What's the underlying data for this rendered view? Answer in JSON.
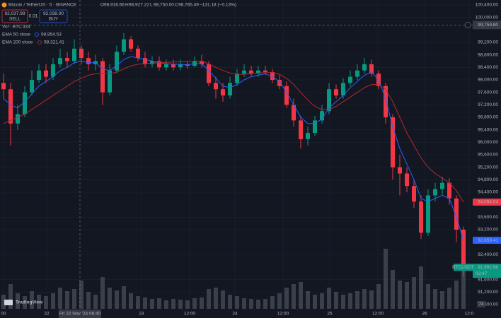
{
  "toolbar": {
    "title": "Bitcoin / TetherUS · 5 · BINANCE",
    "ohlc": [
      {
        "label": "O",
        "value": "98,916.66"
      },
      {
        "label": "H",
        "value": "98,927.22"
      },
      {
        "label": "L",
        "value": "98,750.00"
      },
      {
        "label": "C",
        "value": "98,785.49"
      }
    ],
    "change": "−131.18 (−0.13%)",
    "sell": {
      "price": "92,037.99",
      "label": "SELL"
    },
    "quantity": "0.01",
    "buy": {
      "price": "92,038.00",
      "label": "BUY"
    }
  },
  "logo": "TradingView",
  "corner_badge": "74",
  "chart_data": {
    "type": "candlestick",
    "up_color": "#089981",
    "down_color": "#f23645",
    "grid": true,
    "open": [
      97900,
      97700,
      96600,
      96900,
      97600,
      98000,
      98300,
      98100,
      98500,
      98700,
      98600,
      99000,
      98700,
      98500,
      98600,
      97600,
      98300,
      98900,
      99300,
      99000,
      98700,
      98500,
      98600,
      98400,
      98500,
      98400,
      98500,
      98450,
      98600,
      98500,
      97900,
      97700,
      97500,
      97900,
      98200,
      98300,
      98200,
      98300,
      98250,
      98000,
      97800,
      97200,
      96700,
      96100,
      96300,
      96700,
      97000,
      97700,
      97500,
      97900,
      98100,
      98300,
      98500,
      98200,
      97800,
      96800,
      95200,
      95000,
      94600,
      94100,
      93100,
      94300,
      94500,
      94700,
      94200,
      93200
    ],
    "high": [
      98200,
      97900,
      97200,
      97800,
      98300,
      98500,
      98500,
      98700,
      99000,
      98900,
      99300,
      99100,
      98900,
      98800,
      98700,
      98500,
      99100,
      99500,
      99400,
      99100,
      98900,
      98750,
      98750,
      98650,
      98650,
      98650,
      98600,
      98750,
      98800,
      98600,
      98100,
      97900,
      98100,
      98350,
      98500,
      98450,
      98450,
      98450,
      98350,
      98150,
      97950,
      97400,
      96850,
      96500,
      96850,
      97200,
      97900,
      97850,
      98050,
      98300,
      98500,
      98700,
      98650,
      98300,
      97900,
      96900,
      95600,
      95200,
      94800,
      94300,
      94500,
      94700,
      94900,
      94850,
      94300,
      93300
    ],
    "low": [
      97400,
      95900,
      96400,
      96800,
      97500,
      97900,
      97900,
      98000,
      98400,
      98400,
      98500,
      98500,
      98300,
      98300,
      97200,
      97500,
      98200,
      98800,
      98900,
      98600,
      98400,
      98400,
      98300,
      98300,
      98300,
      98300,
      98350,
      98400,
      98400,
      97800,
      97400,
      97300,
      97400,
      97800,
      98100,
      98100,
      98100,
      98150,
      97900,
      97700,
      97100,
      96500,
      95800,
      95900,
      96200,
      96600,
      96900,
      97400,
      97400,
      97800,
      98000,
      98200,
      98100,
      97700,
      96600,
      94800,
      94300,
      94400,
      93900,
      92900,
      93000,
      94100,
      94300,
      94000,
      92800,
      91700
    ],
    "close": [
      97700,
      96600,
      96900,
      97600,
      98000,
      98300,
      98100,
      98500,
      98700,
      98600,
      99000,
      98700,
      98500,
      98600,
      97600,
      98300,
      98900,
      99300,
      99000,
      98700,
      98500,
      98600,
      98400,
      98500,
      98400,
      98500,
      98450,
      98600,
      98500,
      97900,
      97700,
      97500,
      97900,
      98200,
      98300,
      98200,
      98300,
      98250,
      98000,
      97800,
      97200,
      96700,
      96100,
      96300,
      96700,
      97000,
      97700,
      97500,
      97900,
      98100,
      98300,
      98500,
      98200,
      97800,
      96800,
      95200,
      95000,
      94600,
      94100,
      93100,
      94300,
      94500,
      94700,
      94200,
      93200,
      91993
    ],
    "ema": [
      {
        "name": "EMA 50 close",
        "value_label": "98,954.53",
        "color": "#2962ff",
        "values": [
          97400,
          97200,
          97100,
          97300,
          97550,
          97800,
          97950,
          98100,
          98300,
          98400,
          98550,
          98600,
          98550,
          98550,
          98350,
          98300,
          98450,
          98650,
          98750,
          98700,
          98650,
          98600,
          98550,
          98520,
          98500,
          98500,
          98480,
          98520,
          98520,
          98300,
          98050,
          97800,
          97750,
          97850,
          98000,
          98100,
          98150,
          98200,
          98100,
          97950,
          97600,
          97200,
          96800,
          96600,
          96600,
          96750,
          97100,
          97300,
          97500,
          97750,
          97950,
          98150,
          98250,
          98000,
          97400,
          96500,
          95800,
          95300,
          94800,
          94200,
          94100,
          94200,
          94300,
          94200,
          93600,
          92859.41
        ]
      },
      {
        "name": "EMA 200 close",
        "value_label": "98,321.41",
        "color": "#b22833",
        "values": [
          96600,
          96700,
          96800,
          96900,
          97050,
          97200,
          97350,
          97500,
          97650,
          97800,
          97950,
          98050,
          98150,
          98200,
          98200,
          98200,
          98250,
          98350,
          98450,
          98500,
          98520,
          98540,
          98550,
          98560,
          98570,
          98580,
          98590,
          98600,
          98600,
          98520,
          98400,
          98300,
          98220,
          98180,
          98180,
          98200,
          98220,
          98230,
          98230,
          98180,
          98050,
          97850,
          97600,
          97350,
          97150,
          97050,
          97050,
          97150,
          97300,
          97450,
          97600,
          97750,
          97850,
          97850,
          97700,
          97300,
          96800,
          96300,
          95900,
          95500,
          95200,
          95000,
          94850,
          94700,
          94450,
          94084.04
        ]
      }
    ],
    "volume": {
      "name": "Vol · BTC",
      "value_label": "324",
      "color": "#5d606b",
      "ylim": [
        0,
        100
      ],
      "values": [
        20,
        35,
        22,
        18,
        25,
        20,
        18,
        22,
        30,
        25,
        28,
        40,
        24,
        20,
        45,
        30,
        26,
        32,
        22,
        18,
        16,
        14,
        15,
        12,
        14,
        13,
        12,
        15,
        16,
        28,
        30,
        26,
        20,
        18,
        15,
        14,
        13,
        14,
        18,
        22,
        30,
        35,
        38,
        25,
        20,
        22,
        30,
        24,
        20,
        22,
        25,
        28,
        26,
        35,
        85,
        55,
        40,
        38,
        45,
        60,
        35,
        28,
        25,
        30,
        40,
        70
      ]
    },
    "xlim": [
      0,
      66.8
    ],
    "xticks": [
      {
        "value": 0.5,
        "label": "00"
      },
      {
        "value": 6.6,
        "label": "22"
      },
      {
        "value": 20,
        "label": "23"
      },
      {
        "value": 26.8,
        "label": "12:00"
      },
      {
        "value": 33.2,
        "label": "24"
      },
      {
        "value": 40,
        "label": "12:00"
      },
      {
        "value": 46.6,
        "label": "25"
      },
      {
        "value": 53.4,
        "label": "12:00"
      },
      {
        "value": 60,
        "label": "26"
      },
      {
        "value": 66.3,
        "label": "12:0"
      }
    ],
    "ylim": [
      90800,
      100400
    ],
    "yticks": [
      {
        "value": 100400,
        "label": "100,400.00"
      },
      {
        "value": 100000,
        "label": "100,000.00"
      },
      {
        "value": 99200,
        "label": "99,200.00"
      },
      {
        "value": 98800,
        "label": "98,800.00"
      },
      {
        "value": 98400,
        "label": "98,400.00"
      },
      {
        "value": 98000,
        "label": "98,000.00"
      },
      {
        "value": 97600,
        "label": "97,600.00"
      },
      {
        "value": 97200,
        "label": "97,200.00"
      },
      {
        "value": 96800,
        "label": "96,800.00"
      },
      {
        "value": 96400,
        "label": "96,400.00"
      },
      {
        "value": 96000,
        "label": "96,000.00"
      },
      {
        "value": 95600,
        "label": "95,600.00"
      },
      {
        "value": 95200,
        "label": "95,200.00"
      },
      {
        "value": 94800,
        "label": "94,800.00"
      },
      {
        "value": 94400,
        "label": "94,400.00"
      },
      {
        "value": 93600,
        "label": "93,600.00"
      },
      {
        "value": 93200,
        "label": "93,200.00"
      },
      {
        "value": 92400,
        "label": "92,400.00"
      },
      {
        "value": 91600,
        "label": "91,600.00"
      },
      {
        "value": 91200,
        "label": "91,200.00"
      },
      {
        "value": 90800,
        "label": "90,800.00"
      }
    ],
    "crosshair": {
      "x": 11.3,
      "x_label": "Fri 22 Nov '24 08:40",
      "y": 99759.8,
      "y_label": "99,759.80"
    },
    "price_labels": [
      {
        "value": 94084.04,
        "label": "94,084.04",
        "color": "#f23645"
      },
      {
        "value": 92859.41,
        "label": "92,859.41",
        "color": "#2962ff"
      },
      {
        "name": "BTCUSDT",
        "value": 91992.96,
        "label": "91,992.96",
        "countdown": "03:47",
        "color": "#089981"
      }
    ]
  }
}
